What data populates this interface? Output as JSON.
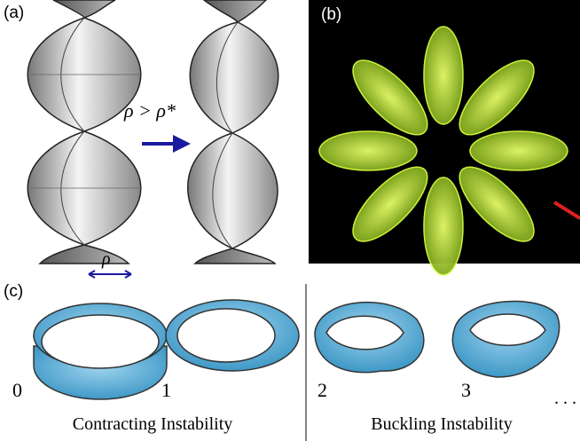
{
  "panels": {
    "a": {
      "label": "(a)",
      "condition": "ρ > ρ*",
      "width_symbol": "ρ"
    },
    "b": {
      "label": "(b)"
    },
    "c": {
      "label": "(c)",
      "modes": [
        "0",
        "1",
        "2",
        "3"
      ],
      "ellipsis": ". . .",
      "groups": [
        "Contracting Instability",
        "Buckling Instability"
      ]
    }
  }
}
